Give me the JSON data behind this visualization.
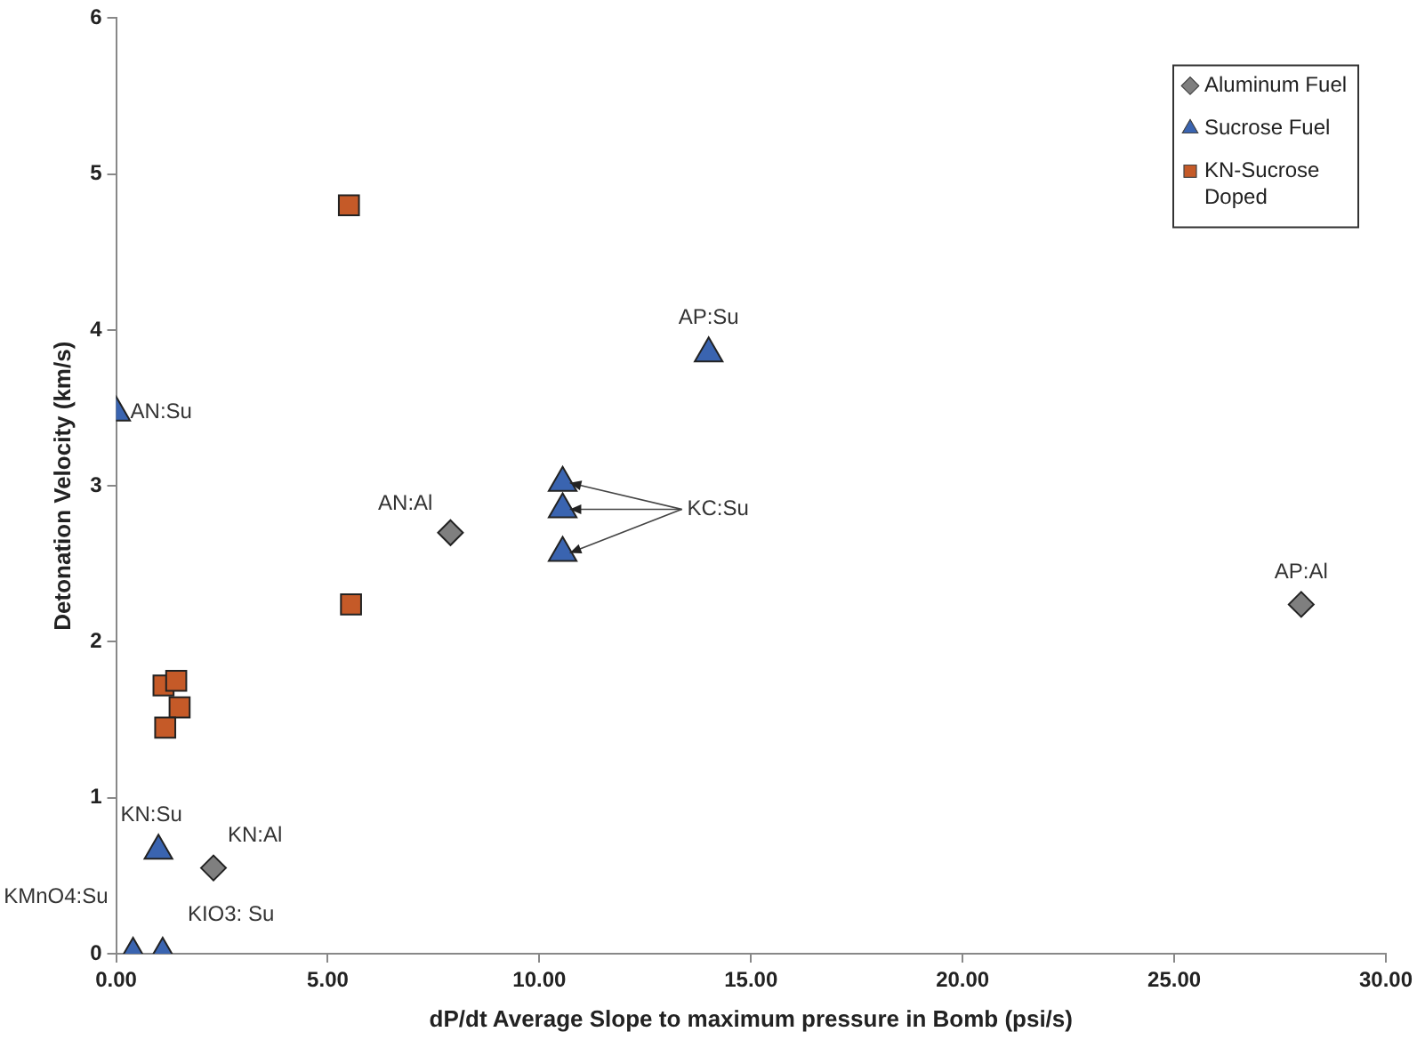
{
  "chart_data": {
    "type": "scatter",
    "xlabel": "dP/dt Average Slope to maximum pressure in Bomb (psi/s)",
    "ylabel": "Detonation Velocity (km/s)",
    "xlim": [
      0,
      30
    ],
    "xticks": [
      {
        "value": 0,
        "label": "0.00"
      },
      {
        "value": 5,
        "label": "5.00"
      },
      {
        "value": 10,
        "label": "10.00"
      },
      {
        "value": 15,
        "label": "15.00"
      },
      {
        "value": 20,
        "label": "20.00"
      },
      {
        "value": 25,
        "label": "25.00"
      },
      {
        "value": 30,
        "label": "30.00"
      }
    ],
    "ylim": [
      0,
      6
    ],
    "yticks": [
      0,
      1,
      2,
      3,
      4,
      5,
      6
    ],
    "grid": false,
    "legend": "top right",
    "series": [
      {
        "name": "Aluminum Fuel",
        "color": "#7f7f7f",
        "marker": "diamond",
        "x": [
          7.9,
          2.3,
          28.0
        ],
        "values": [
          2.7,
          0.55,
          2.24
        ]
      },
      {
        "name": "Sucrose Fuel",
        "color": "#3a64b0",
        "marker": "triangle",
        "x": [
          0,
          14.0,
          10.55,
          10.55,
          10.55,
          1.0,
          0.4,
          1.1
        ],
        "values": [
          3.47,
          3.85,
          3.02,
          2.85,
          2.57,
          0.66,
          0,
          0
        ]
      },
      {
        "name": "KN-Sucrose Doped",
        "color": "#c55a28",
        "marker": "square",
        "x": [
          5.5,
          5.55,
          1.12,
          1.42,
          1.5,
          1.16
        ],
        "values": [
          4.8,
          2.24,
          1.72,
          1.75,
          1.58,
          1.45
        ]
      }
    ],
    "annotations": [
      {
        "text": "AN:Su",
        "x": 0,
        "y": 3.47
      },
      {
        "text": "AP:Su",
        "x": 14.0,
        "y": 3.85
      },
      {
        "text": "AN:Al",
        "x": 7.9,
        "y": 2.7
      },
      {
        "text": "KC:Su",
        "x": 10.55,
        "y": 2.85
      },
      {
        "text": "AP:Al",
        "x": 28.0,
        "y": 2.24
      },
      {
        "text": "KN:Su",
        "x": 1.0,
        "y": 0.66
      },
      {
        "text": "KN:Al",
        "x": 2.3,
        "y": 0.55
      },
      {
        "text": "KMnO4:Su",
        "x": 0.4,
        "y": 0
      },
      {
        "text": "KIO3: Su",
        "x": 1.1,
        "y": 0
      }
    ]
  }
}
